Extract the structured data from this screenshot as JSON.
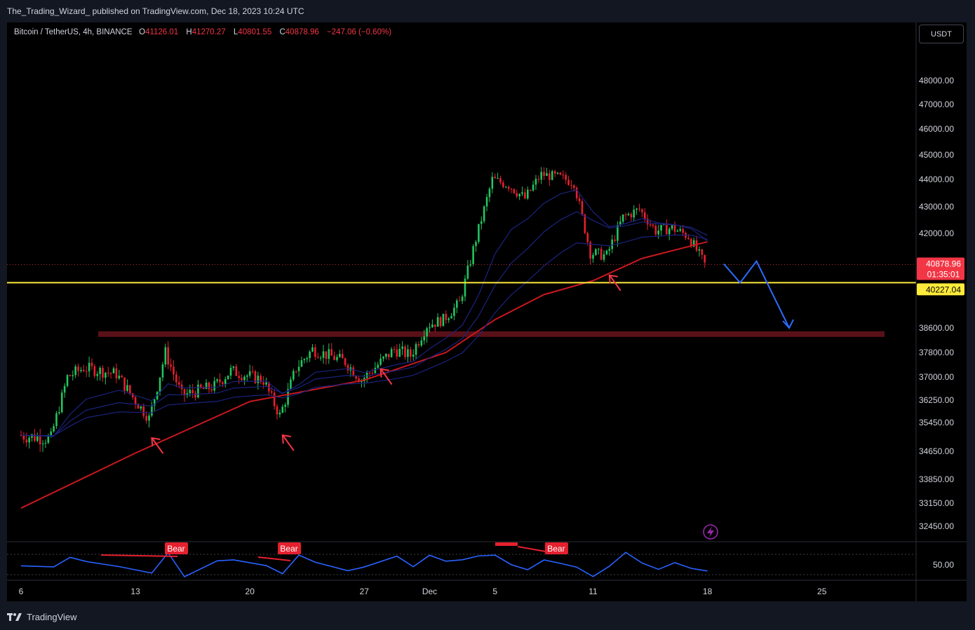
{
  "header": {
    "publisher": "The_Trading_Wizard_ published on TradingView.com, Dec 18, 2023 10:24 UTC"
  },
  "symbol": {
    "name": "Bitcoin / TetherUS, 4h, BINANCE",
    "open_k": "O",
    "open": "41126.01",
    "high_k": "H",
    "high": "41270.27",
    "low_k": "L",
    "low": "40801.55",
    "close_k": "C",
    "close": "40878.96",
    "change": "−247.06 (−0.60%)"
  },
  "currency_button": "USDT",
  "price_axis": {
    "ticks": [
      "48000.00",
      "47000.00",
      "46000.00",
      "45000.00",
      "44000.00",
      "43000.00",
      "42000.00",
      "38600.00",
      "37800.00",
      "37000.00",
      "36250.00",
      "35450.00",
      "34650.00",
      "33850.00",
      "33150.00",
      "32450.00"
    ],
    "last_price_label": "40878.96",
    "countdown_label": "01:35:01",
    "support_label": "40227.04",
    "rsi_tick": "50.00"
  },
  "time_axis": {
    "ticks": [
      "6",
      "13",
      "20",
      "27",
      "Dec",
      "5",
      "11",
      "18",
      "25"
    ]
  },
  "rsi_labels": [
    "Bear",
    "Bear",
    "Bear"
  ],
  "colors": {
    "background": "#000000",
    "bull": "#22c55e",
    "bear": "#e5202e",
    "ema200": "#c8181e",
    "ema_fast": "#1a237e",
    "support_line": "#ffeb3b",
    "zone": "#5a1018",
    "rsi_line": "#2962ff",
    "projection": "#2b6cff",
    "price_label_bg": "#f23645",
    "support_label_bg": "#ffeb3b"
  },
  "footer": {
    "brand": "TradingView"
  },
  "chart_data": {
    "type": "candlestick",
    "symbol": "Bitcoin / TetherUS",
    "interval": "4h",
    "exchange": "BINANCE",
    "ohlc_last": {
      "open": 41126.01,
      "high": 41270.27,
      "low": 40801.55,
      "close": 40878.96
    },
    "change": -247.06,
    "change_pct": -0.6,
    "x_range": [
      "Nov 6, 2023",
      "Dec 28, 2023"
    ],
    "y_range": [
      32000,
      48500
    ],
    "close_path": [
      {
        "t": "Nov 6",
        "close": 35100
      },
      {
        "t": "Nov 8",
        "close": 35000
      },
      {
        "t": "Nov 9",
        "close": 37000
      },
      {
        "t": "Nov 10",
        "close": 37300
      },
      {
        "t": "Nov 12",
        "close": 37100
      },
      {
        "t": "Nov 14",
        "close": 35600
      },
      {
        "t": "Nov 15",
        "close": 37800
      },
      {
        "t": "Nov 16",
        "close": 36400
      },
      {
        "t": "Nov 18",
        "close": 36700
      },
      {
        "t": "Nov 19",
        "close": 37200
      },
      {
        "t": "Nov 21",
        "close": 36900
      },
      {
        "t": "Nov 22",
        "close": 35700
      },
      {
        "t": "Nov 23",
        "close": 37300
      },
      {
        "t": "Nov 24",
        "close": 37900
      },
      {
        "t": "Nov 26",
        "close": 37500
      },
      {
        "t": "Nov 27",
        "close": 36900
      },
      {
        "t": "Nov 29",
        "close": 37900
      },
      {
        "t": "Nov 30",
        "close": 37700
      },
      {
        "t": "Dec 1",
        "close": 38700
      },
      {
        "t": "Dec 2",
        "close": 38900
      },
      {
        "t": "Dec 3",
        "close": 39500
      },
      {
        "t": "Dec 4",
        "close": 41800
      },
      {
        "t": "Dec 5",
        "close": 44000
      },
      {
        "t": "Dec 6",
        "close": 43800
      },
      {
        "t": "Dec 7",
        "close": 43300
      },
      {
        "t": "Dec 8",
        "close": 44200
      },
      {
        "t": "Dec 9",
        "close": 44100
      },
      {
        "t": "Dec 10",
        "close": 43900
      },
      {
        "t": "Dec 11",
        "close": 41300
      },
      {
        "t": "Dec 12",
        "close": 41200
      },
      {
        "t": "Dec 13",
        "close": 42600
      },
      {
        "t": "Dec 14",
        "close": 42900
      },
      {
        "t": "Dec 15",
        "close": 42100
      },
      {
        "t": "Dec 16",
        "close": 42200
      },
      {
        "t": "Dec 17",
        "close": 41900
      },
      {
        "t": "Dec 18",
        "close": 40879
      }
    ],
    "ema200_path": [
      {
        "t": "Nov 6",
        "value": 33000
      },
      {
        "t": "Nov 13",
        "value": 34600
      },
      {
        "t": "Nov 20",
        "value": 36200
      },
      {
        "t": "Nov 27",
        "value": 36900
      },
      {
        "t": "Dec 2",
        "value": 37800
      },
      {
        "t": "Dec 5",
        "value": 38900
      },
      {
        "t": "Dec 8",
        "value": 39800
      },
      {
        "t": "Dec 11",
        "value": 40300
      },
      {
        "t": "Dec 14",
        "value": 41100
      },
      {
        "t": "Dec 18",
        "value": 41700
      }
    ],
    "horizontal_levels": {
      "support": 40227.04,
      "zone": 38400
    },
    "projection": [
      {
        "t": "Dec 19",
        "price": 40900
      },
      {
        "t": "Dec 20",
        "price": 40227
      },
      {
        "t": "Dec 21",
        "price": 41000
      },
      {
        "t": "Dec 23",
        "price": 38600
      }
    ],
    "bounce_arrows_at": [
      "Nov 14",
      "Nov 22",
      "Nov 28",
      "Dec 12"
    ],
    "rsi": {
      "level": 50,
      "bear_divergence_labels": [
        "Bear",
        "Bear",
        "Bear"
      ]
    }
  }
}
